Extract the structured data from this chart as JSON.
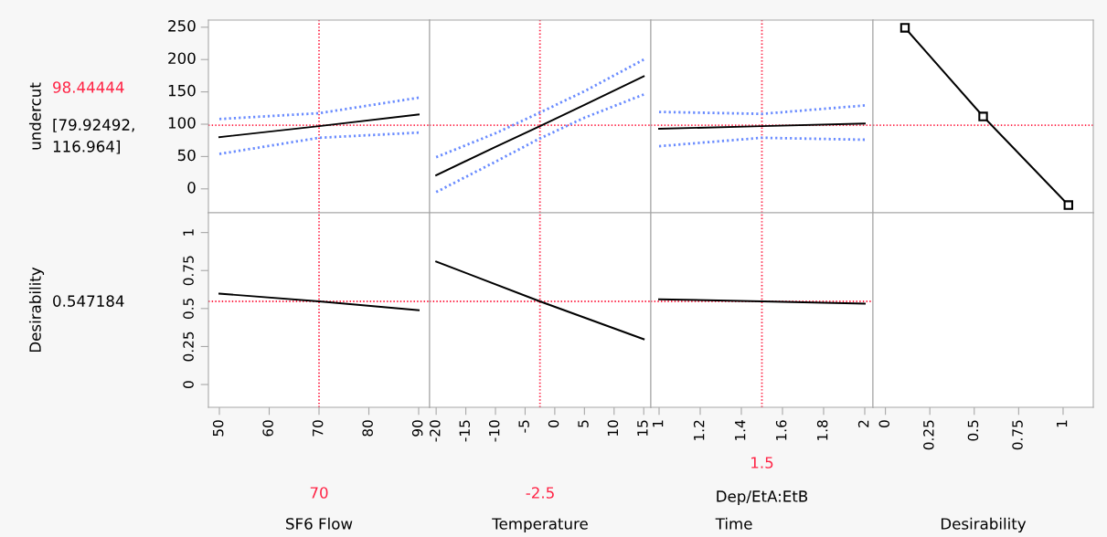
{
  "chart_data": [
    {
      "type": "line",
      "ylabel": "undercut",
      "x": [
        50,
        70,
        90
      ],
      "xlim": [
        47.8,
        92.2
      ],
      "xticks": [
        50,
        60,
        70,
        80,
        90
      ],
      "ylim": [
        -37,
        261
      ],
      "yticks": [
        0,
        50,
        100,
        150,
        200,
        250
      ],
      "tick_labels": "y",
      "series": [
        {
          "color": "#000000",
          "values": [
            80,
            97,
            115
          ]
        },
        {
          "color": "#6a8cff",
          "line_style": "dotted",
          "values": [
            108,
            117,
            141
          ]
        },
        {
          "color": "#6a8cff",
          "line_style": "dotted",
          "values": [
            54,
            79,
            87
          ]
        }
      ],
      "ref_lines": [
        {
          "axis": "x",
          "value": 70,
          "color": "#ff2244",
          "line_style": "dotted"
        },
        {
          "axis": "y",
          "value": 98.44444,
          "label": "98.44444",
          "color": "#ff2244",
          "line_style": "dotted"
        }
      ],
      "annotations": [
        "[79.92492,\n116.964]"
      ]
    },
    {
      "type": "line",
      "x": [
        -20,
        -10,
        -2.5,
        5,
        15
      ],
      "xlim": [
        -21.1,
        16.2
      ],
      "xticks": [
        -20,
        -15,
        -10,
        -5,
        0,
        5,
        10,
        15
      ],
      "ylim": [
        -37,
        261
      ],
      "yticks": [
        0,
        50,
        100,
        150,
        200,
        250
      ],
      "tick_labels": false,
      "series": [
        {
          "color": "#000000",
          "values": [
            21,
            65,
            97,
            130,
            174
          ]
        },
        {
          "color": "#6a8cff",
          "line_style": "dotted",
          "values": [
            49,
            86,
            118,
            151,
            200
          ]
        },
        {
          "color": "#6a8cff",
          "line_style": "dotted",
          "values": [
            -5,
            42,
            78,
            110,
            146
          ]
        }
      ],
      "ref_lines": [
        {
          "axis": "x",
          "value": -2.5,
          "color": "#ff2244",
          "line_style": "dotted"
        },
        {
          "axis": "y",
          "value": 98.44444,
          "color": "#ff2244",
          "line_style": "dotted"
        }
      ]
    },
    {
      "type": "line",
      "x": [
        1,
        1.5,
        2
      ],
      "xlim": [
        0.96,
        2.04
      ],
      "xticks": [
        1,
        1.2,
        1.4,
        1.6,
        1.8,
        2
      ],
      "ylim": [
        -37,
        261
      ],
      "yticks": [
        0,
        50,
        100,
        150,
        200,
        250
      ],
      "tick_labels": false,
      "series": [
        {
          "color": "#000000",
          "values": [
            93,
            97,
            101
          ]
        },
        {
          "color": "#6a8cff",
          "line_style": "dotted",
          "values": [
            119,
            116,
            129
          ]
        },
        {
          "color": "#6a8cff",
          "line_style": "dotted",
          "values": [
            66,
            79,
            76
          ]
        }
      ],
      "ref_lines": [
        {
          "axis": "x",
          "value": 1.5,
          "color": "#ff2244",
          "line_style": "dotted"
        },
        {
          "axis": "y",
          "value": 98.44444,
          "color": "#ff2244",
          "line_style": "dotted"
        }
      ]
    },
    {
      "type": "line",
      "x": [
        0.11,
        0.55,
        1.03
      ],
      "xlim": [
        -0.07,
        1.17
      ],
      "xticks": [
        0,
        0.25,
        0.5,
        0.75,
        1
      ],
      "ylim": [
        -37,
        261
      ],
      "yticks": [
        0,
        50,
        100,
        150,
        200,
        250
      ],
      "tick_labels": false,
      "marker": "square",
      "series": [
        {
          "color": "#000000",
          "values": [
            249,
            112,
            -25
          ]
        }
      ],
      "ref_lines": [
        {
          "axis": "y",
          "value": 98.44444,
          "color": "#ff2244",
          "line_style": "dotted"
        }
      ]
    },
    {
      "type": "line",
      "ylabel": "Desirability",
      "xlabel": "SF6 Flow",
      "x": [
        50,
        70,
        90
      ],
      "xlim": [
        47.8,
        92.2
      ],
      "xticks": [
        50,
        60,
        70,
        80,
        90
      ],
      "ylim": [
        -0.15,
        1.13
      ],
      "yticks": [
        0,
        0.25,
        0.5,
        0.75,
        1
      ],
      "series": [
        {
          "color": "#000000",
          "values": [
            0.598,
            0.547,
            0.489
          ]
        }
      ],
      "ref_lines": [
        {
          "axis": "x",
          "value": 70,
          "label": "70",
          "color": "#ff2244",
          "line_style": "dotted"
        },
        {
          "axis": "y",
          "value": 0.547184,
          "color": "#ff2244",
          "line_style": "dotted"
        }
      ],
      "annotations": [
        "0.547184"
      ]
    },
    {
      "type": "line",
      "xlabel": "Temperature",
      "x": [
        -20,
        -2.5,
        15
      ],
      "xlim": [
        -21.1,
        16.2
      ],
      "xticks": [
        -20,
        -15,
        -10,
        -5,
        0,
        5,
        10,
        15
      ],
      "ylim": [
        -0.15,
        1.13
      ],
      "yticks": [
        0,
        0.25,
        0.5,
        0.75,
        1
      ],
      "tick_labels": "x",
      "series": [
        {
          "color": "#000000",
          "values": [
            0.809,
            0.547,
            0.298
          ]
        }
      ],
      "ref_lines": [
        {
          "axis": "x",
          "value": -2.5,
          "label": "-2.5",
          "color": "#ff2244",
          "line_style": "dotted"
        },
        {
          "axis": "y",
          "value": 0.547184,
          "color": "#ff2244",
          "line_style": "dotted"
        }
      ]
    },
    {
      "type": "line",
      "xlabel": "Dep/EtA:EtB\nTime",
      "x": [
        1,
        1.5,
        2
      ],
      "xlim": [
        0.96,
        2.04
      ],
      "xticks": [
        1,
        1.2,
        1.4,
        1.6,
        1.8,
        2
      ],
      "ylim": [
        -0.15,
        1.13
      ],
      "yticks": [
        0,
        0.25,
        0.5,
        0.75,
        1
      ],
      "tick_labels": "x",
      "series": [
        {
          "color": "#000000",
          "values": [
            0.561,
            0.547,
            0.532
          ]
        }
      ],
      "ref_lines": [
        {
          "axis": "x",
          "value": 1.5,
          "label": "1.5",
          "color": "#ff2244",
          "line_style": "dotted"
        },
        {
          "axis": "y",
          "value": 0.547184,
          "color": "#ff2244",
          "line_style": "dotted"
        }
      ]
    },
    {
      "type": "line",
      "xlabel": "Desirability",
      "xlim": [
        -0.07,
        1.17
      ],
      "xticks": [
        0,
        0.25,
        0.5,
        0.75,
        1
      ],
      "ylim": [
        -0.15,
        1.13
      ],
      "yticks": [
        0,
        0.25,
        0.5,
        0.75,
        1
      ],
      "tick_labels": "x"
    }
  ]
}
